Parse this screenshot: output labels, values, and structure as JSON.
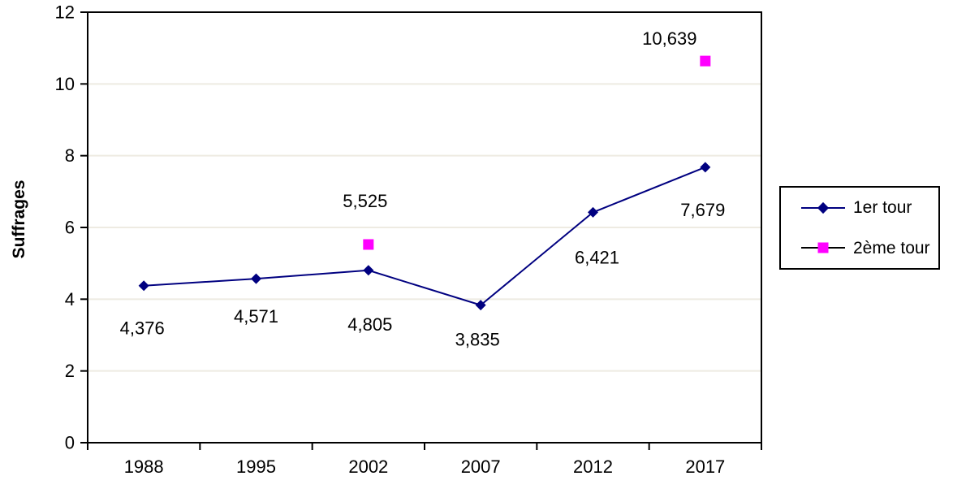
{
  "chart_data": {
    "type": "line",
    "title": "",
    "xlabel": "",
    "ylabel": "Suffrages",
    "categories": [
      "1988",
      "1995",
      "2002",
      "2007",
      "2012",
      "2017"
    ],
    "ylim": [
      0,
      12
    ],
    "ytick_step": 2,
    "yticks": [
      0,
      2,
      4,
      6,
      8,
      10,
      12
    ],
    "value_divisor": 1000,
    "grid": "horizontal",
    "legend_position": "right",
    "colors": {
      "background": "#FFFFFF",
      "grid": "#EEEBE2",
      "axis": "#000000",
      "text": "#000000",
      "series1": "#000080",
      "series2": "#FF00FF"
    },
    "series": [
      {
        "name": "1er tour",
        "color": "#000080",
        "marker": "diamond",
        "line": true,
        "line_color": "#000080",
        "points": [
          {
            "category": "1988",
            "value": 4376,
            "label": "4,376",
            "label_dx": -2,
            "label_dy": 52
          },
          {
            "category": "1995",
            "value": 4571,
            "label": "4,571",
            "label_dx": 0,
            "label_dy": 46
          },
          {
            "category": "2002",
            "value": 4805,
            "label": "4,805",
            "label_dx": 2,
            "label_dy": 66
          },
          {
            "category": "2007",
            "value": 3835,
            "label": "3,835",
            "label_dx": -4,
            "label_dy": 42
          },
          {
            "category": "2012",
            "value": 6421,
            "label": "6,421",
            "label_dx": 5,
            "label_dy": 55
          },
          {
            "category": "2017",
            "value": 7679,
            "label": "7,679",
            "label_dx": -3,
            "label_dy": 52
          }
        ]
      },
      {
        "name": "2ème tour",
        "color": "#FF00FF",
        "marker": "square",
        "line": false,
        "line_color": "#000000",
        "points": [
          {
            "category": "2002",
            "value": 5525,
            "label": "5,525",
            "label_dx": -4,
            "label_dy": -54
          },
          {
            "category": "2017",
            "value": 10639,
            "label": "10,639",
            "label_dx": -44,
            "label_dy": -28
          }
        ]
      }
    ]
  }
}
